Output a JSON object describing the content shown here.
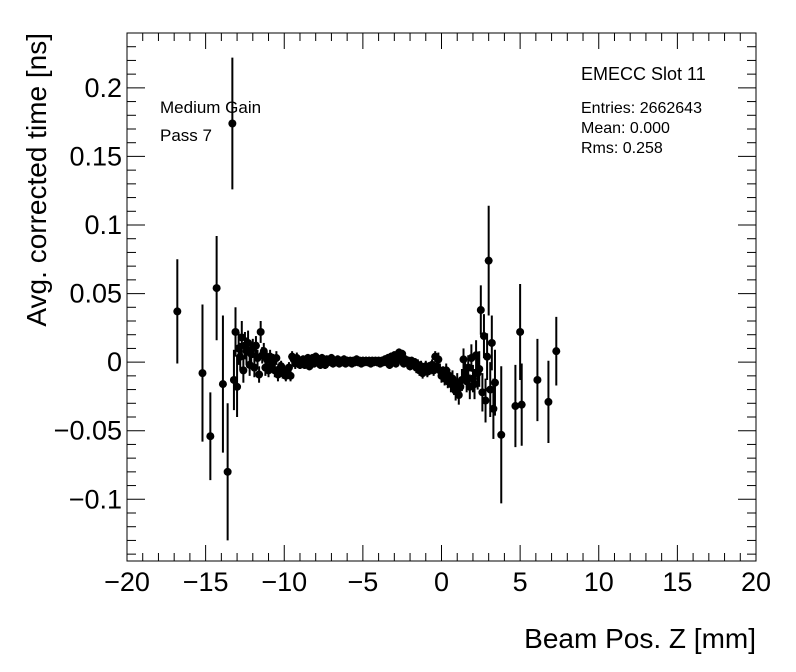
{
  "chart_data": {
    "type": "scatter",
    "style": "points-with-error-bars",
    "title": "",
    "xlabel": "Beam Pos. Z [mm]",
    "ylabel": "Avg. corrected time [ns]",
    "xlim": [
      -20,
      20
    ],
    "ylim": [
      -0.145,
      0.24
    ],
    "xticks": [
      -20,
      -15,
      -10,
      -5,
      0,
      5,
      10,
      15,
      20
    ],
    "xtick_labels": [
      "−20",
      "−15",
      "−10",
      "−5",
      "0",
      "5",
      "10",
      "15",
      "20"
    ],
    "yticks": [
      -0.1,
      -0.05,
      0,
      0.05,
      0.1,
      0.15,
      0.2
    ],
    "ytick_labels": [
      "−0.1",
      "−0.05",
      "0",
      "0.05",
      "0.1",
      "0.15",
      "0.2"
    ],
    "grid": false,
    "marker_color": "#000000",
    "annotations": [
      "Medium Gain",
      "Pass 7"
    ],
    "stats_box": {
      "title": "EMECC Slot 11",
      "entries": "Entries: 2662643",
      "mean": "Mean: 0.000",
      "rms": "Rms: 0.258"
    },
    "points": [
      {
        "x": -16.8,
        "y": 0.037,
        "err": 0.038
      },
      {
        "x": -15.2,
        "y": -0.008,
        "err": 0.05
      },
      {
        "x": -14.7,
        "y": -0.054,
        "err": 0.032
      },
      {
        "x": -14.3,
        "y": 0.054,
        "err": 0.038
      },
      {
        "x": -13.9,
        "y": -0.016,
        "err": 0.05
      },
      {
        "x": -13.6,
        "y": -0.08,
        "err": 0.05
      },
      {
        "x": -13.3,
        "y": 0.174,
        "err": 0.048
      },
      {
        "x": -13.2,
        "y": -0.013,
        "err": 0.022
      },
      {
        "x": -13.1,
        "y": 0.022,
        "err": 0.018
      },
      {
        "x": -13.0,
        "y": -0.018,
        "err": 0.022
      },
      {
        "x": -12.9,
        "y": 0.01,
        "err": 0.012
      },
      {
        "x": -12.8,
        "y": 0.004,
        "err": 0.01
      },
      {
        "x": -12.7,
        "y": 0.018,
        "err": 0.012
      },
      {
        "x": -12.6,
        "y": -0.006,
        "err": 0.009
      },
      {
        "x": -12.5,
        "y": 0.012,
        "err": 0.01
      },
      {
        "x": -12.4,
        "y": 0.008,
        "err": 0.01
      },
      {
        "x": -12.3,
        "y": 0.014,
        "err": 0.009
      },
      {
        "x": -12.2,
        "y": -0.002,
        "err": 0.008
      },
      {
        "x": -12.1,
        "y": 0.006,
        "err": 0.008
      },
      {
        "x": -12.0,
        "y": 0.01,
        "err": 0.007
      },
      {
        "x": -11.9,
        "y": -0.004,
        "err": 0.007
      },
      {
        "x": -11.8,
        "y": 0.012,
        "err": 0.007
      },
      {
        "x": -11.7,
        "y": 0.003,
        "err": 0.006
      },
      {
        "x": -11.6,
        "y": -0.009,
        "err": 0.006
      },
      {
        "x": -11.5,
        "y": 0.022,
        "err": 0.008
      },
      {
        "x": -11.4,
        "y": 0.005,
        "err": 0.006
      },
      {
        "x": -11.3,
        "y": 0.008,
        "err": 0.006
      },
      {
        "x": -11.2,
        "y": -0.004,
        "err": 0.006
      },
      {
        "x": -11.1,
        "y": 0.002,
        "err": 0.005
      },
      {
        "x": -11.0,
        "y": -0.006,
        "err": 0.005
      },
      {
        "x": -10.9,
        "y": 0.004,
        "err": 0.005
      },
      {
        "x": -10.8,
        "y": -0.002,
        "err": 0.005
      },
      {
        "x": -10.7,
        "y": 0.001,
        "err": 0.005
      },
      {
        "x": -10.6,
        "y": -0.006,
        "err": 0.005
      },
      {
        "x": -10.5,
        "y": 0.003,
        "err": 0.005
      },
      {
        "x": -10.4,
        "y": -0.009,
        "err": 0.005
      },
      {
        "x": -10.3,
        "y": -0.005,
        "err": 0.005
      },
      {
        "x": -10.2,
        "y": -0.003,
        "err": 0.004
      },
      {
        "x": -10.1,
        "y": -0.008,
        "err": 0.004
      },
      {
        "x": -10.0,
        "y": -0.006,
        "err": 0.004
      },
      {
        "x": -9.9,
        "y": -0.01,
        "err": 0.004
      },
      {
        "x": -9.8,
        "y": -0.008,
        "err": 0.004
      },
      {
        "x": -9.7,
        "y": -0.004,
        "err": 0.004
      },
      {
        "x": -9.6,
        "y": -0.01,
        "err": 0.004
      },
      {
        "x": -9.5,
        "y": 0.004,
        "err": 0.004
      },
      {
        "x": -9.4,
        "y": 0.002,
        "err": 0.004
      },
      {
        "x": -9.3,
        "y": -0.001,
        "err": 0.004
      },
      {
        "x": -9.2,
        "y": 0.003,
        "err": 0.004
      },
      {
        "x": -9.1,
        "y": 0.001,
        "err": 0.003
      },
      {
        "x": -9.0,
        "y": -0.002,
        "err": 0.003
      },
      {
        "x": -8.9,
        "y": 0.0,
        "err": 0.003
      },
      {
        "x": -8.8,
        "y": 0.002,
        "err": 0.003
      },
      {
        "x": -8.7,
        "y": -0.002,
        "err": 0.003
      },
      {
        "x": -8.6,
        "y": 0.001,
        "err": 0.003
      },
      {
        "x": -8.5,
        "y": 0.003,
        "err": 0.003
      },
      {
        "x": -8.4,
        "y": -0.003,
        "err": 0.003
      },
      {
        "x": -8.3,
        "y": 0.001,
        "err": 0.003
      },
      {
        "x": -8.2,
        "y": 0.003,
        "err": 0.003
      },
      {
        "x": -8.1,
        "y": -0.001,
        "err": 0.003
      },
      {
        "x": -8.0,
        "y": 0.004,
        "err": 0.003
      },
      {
        "x": -7.9,
        "y": 0.0,
        "err": 0.003
      },
      {
        "x": -7.8,
        "y": 0.002,
        "err": 0.003
      },
      {
        "x": -7.7,
        "y": -0.002,
        "err": 0.003
      },
      {
        "x": -7.6,
        "y": 0.003,
        "err": 0.003
      },
      {
        "x": -7.5,
        "y": 0.001,
        "err": 0.003
      },
      {
        "x": -7.4,
        "y": -0.002,
        "err": 0.003
      },
      {
        "x": -7.3,
        "y": 0.002,
        "err": 0.003
      },
      {
        "x": -7.2,
        "y": 0.0,
        "err": 0.003
      },
      {
        "x": -7.1,
        "y": 0.002,
        "err": 0.003
      },
      {
        "x": -7.0,
        "y": 0.003,
        "err": 0.003
      },
      {
        "x": -6.9,
        "y": -0.001,
        "err": 0.003
      },
      {
        "x": -6.8,
        "y": 0.001,
        "err": 0.003
      },
      {
        "x": -6.7,
        "y": 0.0,
        "err": 0.003
      },
      {
        "x": -6.6,
        "y": 0.002,
        "err": 0.003
      },
      {
        "x": -6.5,
        "y": -0.001,
        "err": 0.003
      },
      {
        "x": -6.4,
        "y": 0.001,
        "err": 0.003
      },
      {
        "x": -6.3,
        "y": 0.0,
        "err": 0.003
      },
      {
        "x": -6.2,
        "y": 0.002,
        "err": 0.003
      },
      {
        "x": -6.1,
        "y": -0.001,
        "err": 0.003
      },
      {
        "x": -6.0,
        "y": 0.001,
        "err": 0.003
      },
      {
        "x": -5.9,
        "y": 0.0,
        "err": 0.003
      },
      {
        "x": -5.8,
        "y": 0.001,
        "err": 0.003
      },
      {
        "x": -5.7,
        "y": -0.001,
        "err": 0.003
      },
      {
        "x": -5.6,
        "y": 0.001,
        "err": 0.003
      },
      {
        "x": -5.5,
        "y": 0.0,
        "err": 0.003
      },
      {
        "x": -5.4,
        "y": 0.002,
        "err": 0.003
      },
      {
        "x": -5.3,
        "y": 0.0,
        "err": 0.003
      },
      {
        "x": -5.2,
        "y": 0.001,
        "err": 0.003
      },
      {
        "x": -5.1,
        "y": -0.001,
        "err": 0.003
      },
      {
        "x": -5.0,
        "y": 0.001,
        "err": 0.003
      },
      {
        "x": -4.9,
        "y": 0.0,
        "err": 0.003
      },
      {
        "x": -4.8,
        "y": 0.001,
        "err": 0.003
      },
      {
        "x": -4.7,
        "y": 0.0,
        "err": 0.003
      },
      {
        "x": -4.6,
        "y": 0.001,
        "err": 0.003
      },
      {
        "x": -4.5,
        "y": -0.001,
        "err": 0.003
      },
      {
        "x": -4.4,
        "y": 0.001,
        "err": 0.003
      },
      {
        "x": -4.3,
        "y": 0.0,
        "err": 0.003
      },
      {
        "x": -4.2,
        "y": 0.001,
        "err": 0.003
      },
      {
        "x": -4.1,
        "y": 0.0,
        "err": 0.003
      },
      {
        "x": -4.0,
        "y": 0.001,
        "err": 0.003
      },
      {
        "x": -3.9,
        "y": -0.001,
        "err": 0.003
      },
      {
        "x": -3.8,
        "y": 0.001,
        "err": 0.003
      },
      {
        "x": -3.7,
        "y": 0.0,
        "err": 0.003
      },
      {
        "x": -3.6,
        "y": 0.002,
        "err": 0.003
      },
      {
        "x": -3.5,
        "y": 0.0,
        "err": 0.003
      },
      {
        "x": -3.4,
        "y": 0.003,
        "err": 0.003
      },
      {
        "x": -3.3,
        "y": -0.002,
        "err": 0.003
      },
      {
        "x": -3.2,
        "y": 0.004,
        "err": 0.003
      },
      {
        "x": -3.1,
        "y": 0.0,
        "err": 0.003
      },
      {
        "x": -3.0,
        "y": 0.005,
        "err": 0.003
      },
      {
        "x": -2.9,
        "y": -0.001,
        "err": 0.003
      },
      {
        "x": -2.8,
        "y": 0.004,
        "err": 0.003
      },
      {
        "x": -2.7,
        "y": 0.007,
        "err": 0.003
      },
      {
        "x": -2.6,
        "y": 0.002,
        "err": 0.003
      },
      {
        "x": -2.5,
        "y": 0.006,
        "err": 0.003
      },
      {
        "x": -2.4,
        "y": -0.001,
        "err": 0.003
      },
      {
        "x": -2.3,
        "y": 0.002,
        "err": 0.003
      },
      {
        "x": -2.2,
        "y": 0.0,
        "err": 0.003
      },
      {
        "x": -2.1,
        "y": 0.001,
        "err": 0.003
      },
      {
        "x": -2.0,
        "y": -0.003,
        "err": 0.003
      },
      {
        "x": -1.9,
        "y": 0.001,
        "err": 0.003
      },
      {
        "x": -1.8,
        "y": -0.002,
        "err": 0.003
      },
      {
        "x": -1.7,
        "y": 0.0,
        "err": 0.003
      },
      {
        "x": -1.6,
        "y": -0.004,
        "err": 0.004
      },
      {
        "x": -1.5,
        "y": -0.002,
        "err": 0.004
      },
      {
        "x": -1.4,
        "y": -0.006,
        "err": 0.004
      },
      {
        "x": -1.3,
        "y": -0.003,
        "err": 0.004
      },
      {
        "x": -1.2,
        "y": -0.008,
        "err": 0.004
      },
      {
        "x": -1.1,
        "y": -0.005,
        "err": 0.004
      },
      {
        "x": -1.0,
        "y": -0.003,
        "err": 0.004
      },
      {
        "x": -0.9,
        "y": -0.007,
        "err": 0.004
      },
      {
        "x": -0.8,
        "y": -0.004,
        "err": 0.004
      },
      {
        "x": -0.7,
        "y": -0.005,
        "err": 0.004
      },
      {
        "x": -0.6,
        "y": -0.002,
        "err": 0.004
      },
      {
        "x": -0.5,
        "y": -0.006,
        "err": 0.004
      },
      {
        "x": -0.4,
        "y": 0.004,
        "err": 0.004
      },
      {
        "x": -0.3,
        "y": -0.003,
        "err": 0.004
      },
      {
        "x": -0.2,
        "y": 0.002,
        "err": 0.005
      },
      {
        "x": -0.1,
        "y": -0.006,
        "err": 0.005
      },
      {
        "x": 0.0,
        "y": -0.01,
        "err": 0.005
      },
      {
        "x": 0.1,
        "y": -0.008,
        "err": 0.005
      },
      {
        "x": 0.2,
        "y": -0.012,
        "err": 0.005
      },
      {
        "x": 0.3,
        "y": -0.006,
        "err": 0.005
      },
      {
        "x": 0.4,
        "y": -0.014,
        "err": 0.005
      },
      {
        "x": 0.5,
        "y": -0.01,
        "err": 0.005
      },
      {
        "x": 0.6,
        "y": -0.016,
        "err": 0.006
      },
      {
        "x": 0.7,
        "y": -0.012,
        "err": 0.006
      },
      {
        "x": 0.8,
        "y": -0.018,
        "err": 0.006
      },
      {
        "x": 0.9,
        "y": -0.021,
        "err": 0.007
      },
      {
        "x": 1.0,
        "y": -0.015,
        "err": 0.007
      },
      {
        "x": 1.1,
        "y": -0.024,
        "err": 0.007
      },
      {
        "x": 1.2,
        "y": -0.018,
        "err": 0.007
      },
      {
        "x": 1.3,
        "y": -0.013,
        "err": 0.008
      },
      {
        "x": 1.4,
        "y": 0.002,
        "err": 0.008
      },
      {
        "x": 1.5,
        "y": -0.008,
        "err": 0.008
      },
      {
        "x": 1.6,
        "y": -0.014,
        "err": 0.008
      },
      {
        "x": 1.7,
        "y": -0.004,
        "err": 0.009
      },
      {
        "x": 1.8,
        "y": -0.018,
        "err": 0.009
      },
      {
        "x": 1.9,
        "y": 0.003,
        "err": 0.01
      },
      {
        "x": 2.0,
        "y": -0.012,
        "err": 0.01
      },
      {
        "x": 2.1,
        "y": -0.016,
        "err": 0.011
      },
      {
        "x": 2.2,
        "y": 0.005,
        "err": 0.011
      },
      {
        "x": 2.3,
        "y": -0.008,
        "err": 0.012
      },
      {
        "x": 2.4,
        "y": -0.005,
        "err": 0.013
      },
      {
        "x": 2.5,
        "y": 0.038,
        "err": 0.018
      },
      {
        "x": 2.6,
        "y": -0.022,
        "err": 0.014
      },
      {
        "x": 2.7,
        "y": 0.019,
        "err": 0.016
      },
      {
        "x": 2.8,
        "y": -0.028,
        "err": 0.016
      },
      {
        "x": 2.9,
        "y": 0.004,
        "err": 0.017
      },
      {
        "x": 3.0,
        "y": 0.074,
        "err": 0.04
      },
      {
        "x": 3.1,
        "y": -0.02,
        "err": 0.02
      },
      {
        "x": 3.2,
        "y": 0.014,
        "err": 0.02
      },
      {
        "x": 3.3,
        "y": -0.034,
        "err": 0.022
      },
      {
        "x": 3.4,
        "y": -0.015,
        "err": 0.024
      },
      {
        "x": 3.8,
        "y": -0.053,
        "err": 0.05
      },
      {
        "x": 4.7,
        "y": -0.032,
        "err": 0.03
      },
      {
        "x": 5.0,
        "y": 0.022,
        "err": 0.035
      },
      {
        "x": 5.1,
        "y": -0.031,
        "err": 0.03
      },
      {
        "x": 6.1,
        "y": -0.013,
        "err": 0.03
      },
      {
        "x": 6.8,
        "y": -0.029,
        "err": 0.03
      },
      {
        "x": 7.3,
        "y": 0.008,
        "err": 0.025
      }
    ]
  }
}
